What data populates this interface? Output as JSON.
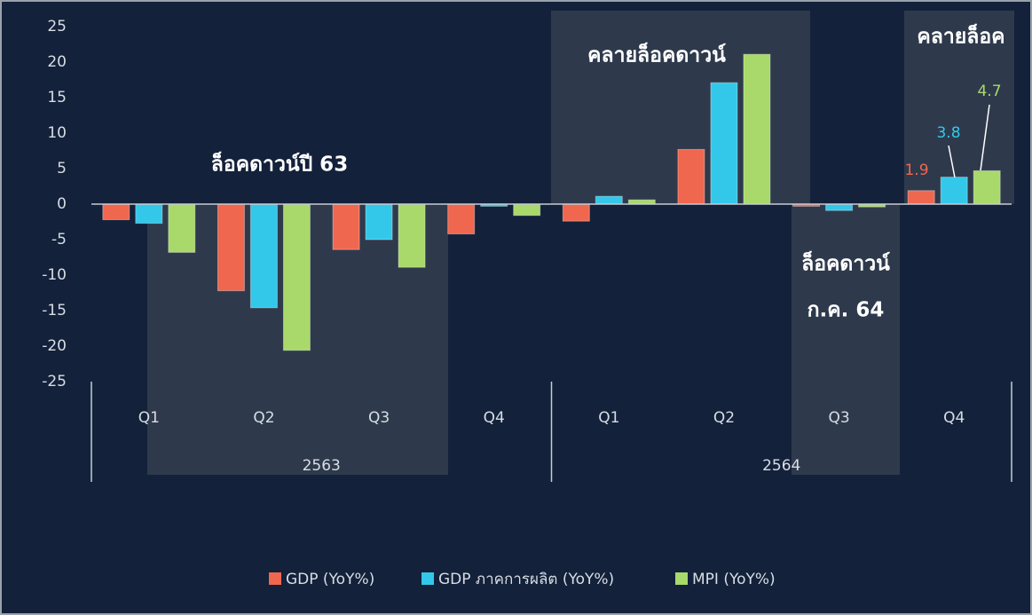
{
  "chart_data": {
    "type": "bar",
    "categories": [
      "Q1",
      "Q2",
      "Q3",
      "Q4",
      "Q1",
      "Q2",
      "Q3",
      "Q4"
    ],
    "groups": [
      {
        "label": "2563",
        "count": 4
      },
      {
        "label": "2564",
        "count": 4
      }
    ],
    "series": [
      {
        "name": "GDP (YoY%)",
        "color": "#f0674f",
        "values": [
          -2.2,
          -12.2,
          -6.4,
          -4.2,
          -2.4,
          7.7,
          -0.3,
          1.9
        ]
      },
      {
        "name": "GDP ภาคการผลิต (YoY%)",
        "color": "#33c8ea",
        "values": [
          -2.7,
          -14.6,
          -5.0,
          -0.3,
          1.1,
          17.1,
          -0.9,
          3.8
        ]
      },
      {
        "name": "MPI (YoY%)",
        "color": "#a8d96a",
        "values": [
          -6.8,
          -20.6,
          -8.9,
          -1.6,
          0.6,
          21.1,
          -0.4,
          4.7
        ]
      }
    ],
    "ylim": [
      -25,
      25
    ],
    "yticks": [
      -25,
      -20,
      -15,
      -10,
      -5,
      0,
      5,
      10,
      15,
      20,
      25
    ],
    "grid": false,
    "annotations": [
      {
        "text": "ล็อคดาวน์ปี 63"
      },
      {
        "text": "คลายล็อคดาวน์"
      },
      {
        "text": "คลายล็อค"
      },
      {
        "lines": [
          "ล็อคดาวน์",
          "ก.ค. 64"
        ]
      }
    ],
    "legend": "bottom"
  }
}
